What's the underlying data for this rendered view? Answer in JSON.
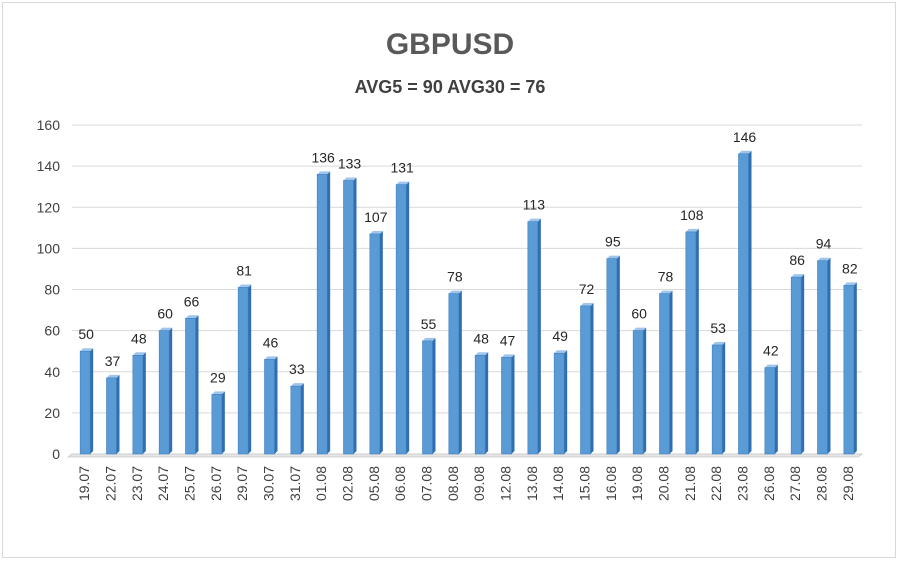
{
  "chart_data": {
    "type": "bar",
    "title": "GBPUSD",
    "subtitle": "AVG5 = 90 AVG30 = 76",
    "xlabel": "",
    "ylabel": "",
    "ylim": [
      0,
      160
    ],
    "yticks": [
      0,
      20,
      40,
      60,
      80,
      100,
      120,
      140,
      160
    ],
    "grid": true,
    "bar_color": "#5b9bd5",
    "categories": [
      "19.07",
      "22.07",
      "23.07",
      "24.07",
      "25.07",
      "26.07",
      "29.07",
      "30.07",
      "31.07",
      "01.08",
      "02.08",
      "05.08",
      "06.08",
      "07.08",
      "08.08",
      "09.08",
      "12.08",
      "13.08",
      "14.08",
      "15.08",
      "16.08",
      "19.08",
      "20.08",
      "21.08",
      "22.08",
      "23.08",
      "26.08",
      "27.08",
      "28.08",
      "29.08"
    ],
    "values": [
      50,
      37,
      48,
      60,
      66,
      29,
      81,
      46,
      33,
      136,
      133,
      107,
      131,
      55,
      78,
      48,
      47,
      113,
      49,
      72,
      95,
      60,
      78,
      108,
      53,
      146,
      42,
      86,
      94,
      82
    ]
  }
}
